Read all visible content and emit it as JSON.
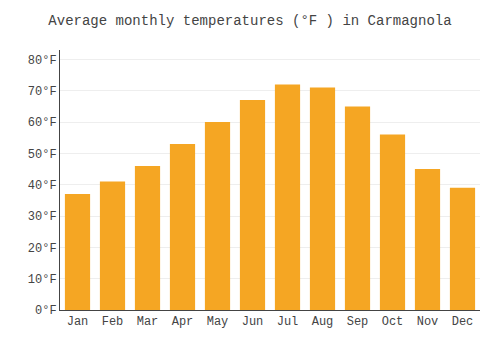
{
  "chart_data": {
    "type": "bar",
    "title": "Average monthly temperatures (°F ) in Carmagnola",
    "categories": [
      "Jan",
      "Feb",
      "Mar",
      "Apr",
      "May",
      "Jun",
      "Jul",
      "Aug",
      "Sep",
      "Oct",
      "Nov",
      "Dec"
    ],
    "values": [
      37,
      41,
      46,
      53,
      60,
      67,
      72,
      71,
      65,
      56,
      45,
      39
    ],
    "color": "#F5A623",
    "ylim": [
      0,
      83
    ],
    "yticks": [
      {
        "value": 0,
        "label": "0°F"
      },
      {
        "value": 10,
        "label": "10°F"
      },
      {
        "value": 20,
        "label": "20°F"
      },
      {
        "value": 30,
        "label": "30°F"
      },
      {
        "value": 40,
        "label": "40°F"
      },
      {
        "value": 50,
        "label": "50°F"
      },
      {
        "value": 60,
        "label": "60°F"
      },
      {
        "value": 70,
        "label": "70°F"
      },
      {
        "value": 80,
        "label": "80°F"
      }
    ],
    "grid": true
  }
}
